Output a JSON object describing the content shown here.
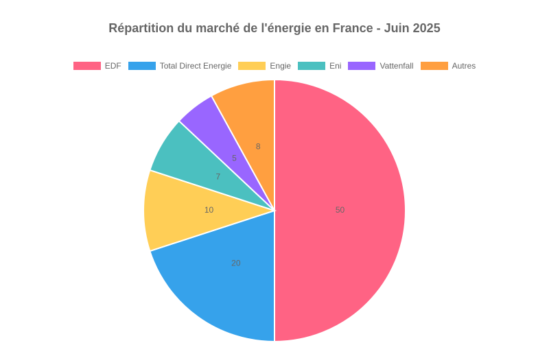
{
  "chart_data": {
    "type": "pie",
    "title": "Répartition du marché de l'énergie en France - Juin 2025",
    "categories": [
      "EDF",
      "Total Direct Energie",
      "Engie",
      "Eni",
      "Vattenfall",
      "Autres"
    ],
    "values": [
      50,
      20,
      10,
      7,
      5,
      8
    ],
    "colors": [
      "#ff6384",
      "#36a2eb",
      "#ffce56",
      "#4bc0c0",
      "#9966ff",
      "#ff9f40"
    ],
    "legend_position": "top",
    "data_labels": true
  }
}
